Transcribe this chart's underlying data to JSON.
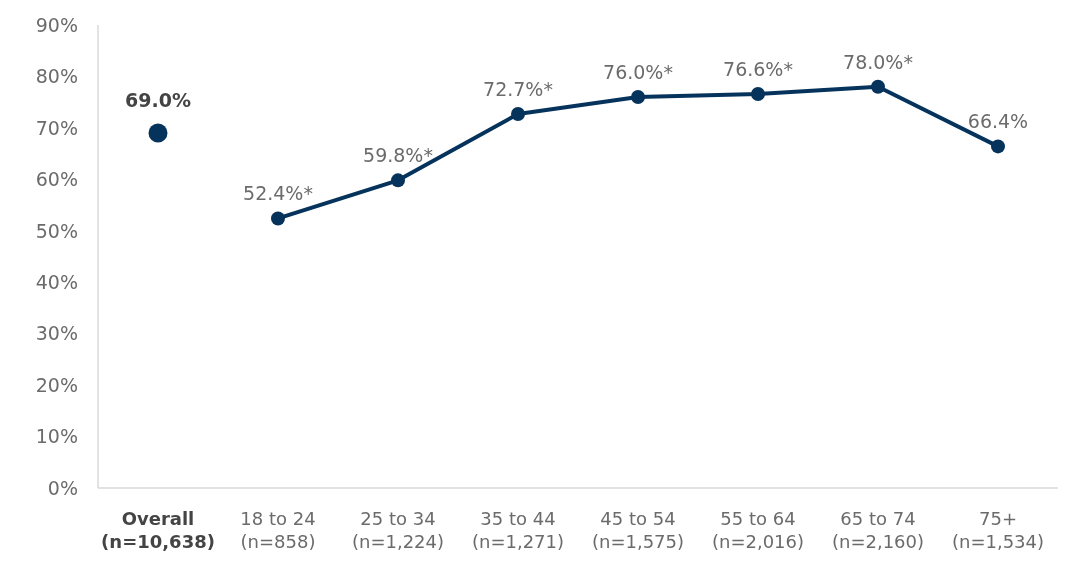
{
  "chart_data": {
    "type": "line",
    "categories": [
      "Overall\n(n=10,638)",
      "18 to 24\n(n=858)",
      "25 to 34\n(n=1,224)",
      "35 to 44\n(n=1,271)",
      "45 to 54\n(n=1,575)",
      "55 to 64\n(n=2,016)",
      "65 to 74\n(n=2,160)",
      "75+\n(n=1,534)"
    ],
    "series": [
      {
        "type": "scatter",
        "color": "#06335c",
        "values": [
          69.0,
          null,
          null,
          null,
          null,
          null,
          null,
          null
        ],
        "value_labels": [
          "69.0%",
          null,
          null,
          null,
          null,
          null,
          null,
          null
        ]
      },
      {
        "color": "#06335c",
        "values": [
          null,
          52.4,
          59.8,
          72.7,
          76.0,
          76.6,
          78.0,
          66.4
        ],
        "value_labels": [
          null,
          "52.4%*",
          "59.8%*",
          "72.7%*",
          "76.0%*",
          "76.6%*",
          "78.0%*",
          "66.4%"
        ]
      }
    ],
    "ylim": [
      0,
      90
    ],
    "yticks": [
      {
        "value": 0,
        "label": "0%"
      },
      {
        "value": 10,
        "label": "10%"
      },
      {
        "value": 20,
        "label": "20%"
      },
      {
        "value": 30,
        "label": "30%"
      },
      {
        "value": 40,
        "label": "40%"
      },
      {
        "value": 50,
        "label": "50%"
      },
      {
        "value": 60,
        "label": "60%"
      },
      {
        "value": 70,
        "label": "70%"
      },
      {
        "value": 80,
        "label": "80%"
      },
      {
        "value": 90,
        "label": "90%"
      }
    ],
    "marker": "circle",
    "line_style": "solid"
  }
}
